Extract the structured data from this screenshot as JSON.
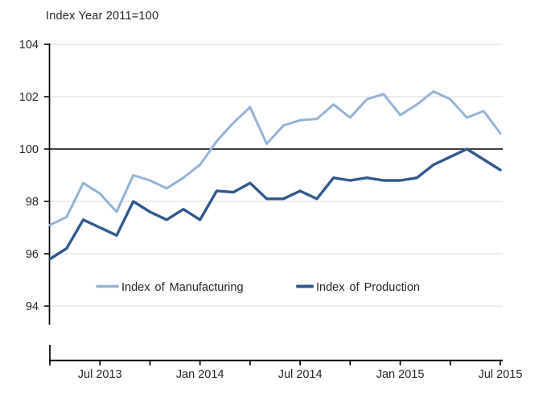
{
  "chart_data": {
    "type": "line",
    "title": "Index Year 2011=100",
    "x": [
      "Apr 2013",
      "May 2013",
      "Jun 2013",
      "Jul 2013",
      "Aug 2013",
      "Sep 2013",
      "Oct 2013",
      "Nov 2013",
      "Dec 2013",
      "Jan 2014",
      "Feb 2014",
      "Mar 2014",
      "Apr 2014",
      "May 2014",
      "Jun 2014",
      "Jul 2014",
      "Aug 2014",
      "Sep 2014",
      "Oct 2014",
      "Nov 2014",
      "Dec 2014",
      "Jan 2015",
      "Feb 2015",
      "Mar 2015",
      "Apr 2015",
      "May 2015",
      "Jun 2015",
      "Jul 2015"
    ],
    "series": [
      {
        "name": "Index of Manufacturing",
        "color": "#95b3d7",
        "values": [
          97.1,
          97.4,
          98.7,
          98.3,
          97.6,
          99.0,
          98.8,
          98.5,
          98.9,
          99.4,
          100.3,
          101.0,
          101.6,
          100.2,
          100.9,
          101.1,
          101.15,
          101.7,
          101.2,
          101.9,
          102.1,
          101.3,
          101.7,
          102.2,
          101.9,
          101.2,
          101.45,
          100.6
        ]
      },
      {
        "name": "Index of Production",
        "color": "#31598c",
        "values": [
          95.8,
          96.2,
          97.3,
          97.0,
          96.7,
          98.0,
          97.6,
          97.3,
          97.7,
          97.3,
          98.4,
          98.35,
          98.7,
          98.1,
          98.1,
          98.4,
          98.1,
          98.9,
          98.8,
          98.9,
          98.8,
          98.8,
          98.9,
          99.4,
          99.7,
          100.0,
          99.6,
          99.2
        ]
      }
    ],
    "y_ticks": [
      104,
      102,
      100,
      98,
      96,
      94
    ],
    "ylim": [
      93.2,
      104
    ],
    "baseline_value": 100,
    "x_tick_labels": [
      "Jul 2013",
      "Jan 2014",
      "Jul 2014",
      "Jan 2015",
      "Jul 2015"
    ],
    "grid": true,
    "legend_position": "inside-bottom",
    "colors": {
      "gridline": "#d9d9d9",
      "baseline": "#000000",
      "axis": "#000000",
      "text": "#262626"
    }
  }
}
